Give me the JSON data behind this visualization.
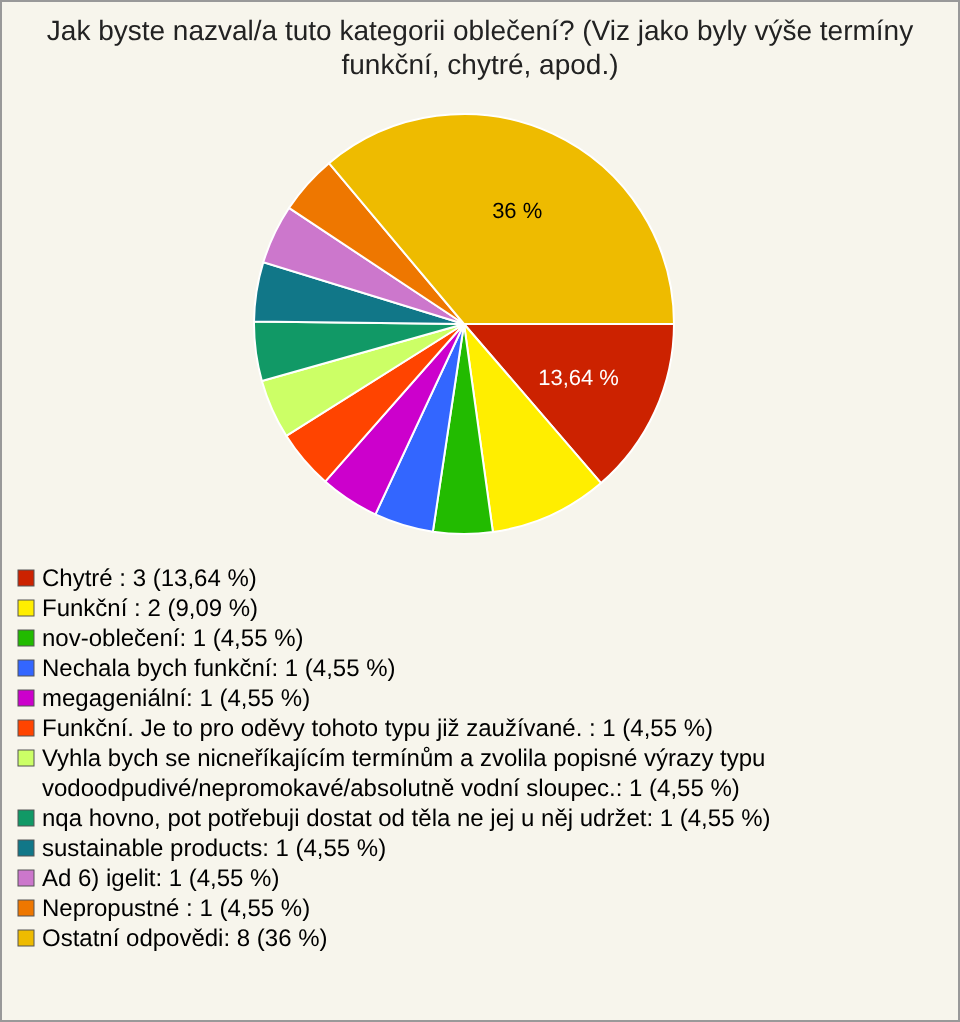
{
  "chart_data": {
    "type": "pie",
    "title": "Jak byste nazval/a tuto kategorii oblečení? (Viz jako byly výše termíny funkční, chytré, apod.)",
    "categories": [
      "Chytré : 3 (13,64 %)",
      "Funkční : 2 (9,09 %)",
      "nov-oblečení: 1 (4,55 %)",
      "Nechala bych funkční: 1 (4,55 %)",
      "megageniální: 1 (4,55 %)",
      "Funkční. Je to pro oděvy tohoto typu již zaužívané. : 1 (4,55 %)",
      "Vyhla bych se nicneříkajícím termínům a zvolila popisné výrazy typu vodoodpudivé/nepromokavé/absolutně vodní sloupec.: 1 (4,55 %)",
      "nqa hovno, pot potřebuji dostat od těla ne jej u něj udržet: 1 (4,55 %)",
      "sustainable products: 1 (4,55 %)",
      "Ad 6) igelit: 1 (4,55 %)",
      "Nepropustné : 1 (4,55 %)",
      "Ostatní odpovědi: 8 (36 %)"
    ],
    "values": [
      13.64,
      9.09,
      4.55,
      4.55,
      4.55,
      4.55,
      4.55,
      4.55,
      4.55,
      4.55,
      4.55,
      36
    ],
    "value_labels": [
      "13,64 %",
      null,
      null,
      null,
      null,
      null,
      null,
      null,
      null,
      null,
      null,
      "36 %"
    ],
    "colors": [
      "#cc2200",
      "#ffee00",
      "#22bb00",
      "#3366ff",
      "#cc00cc",
      "#ff4400",
      "#ccff66",
      "#119966",
      "#117788",
      "#cc77cc",
      "#ee7700",
      "#eebb00"
    ],
    "legend": "bottom"
  }
}
